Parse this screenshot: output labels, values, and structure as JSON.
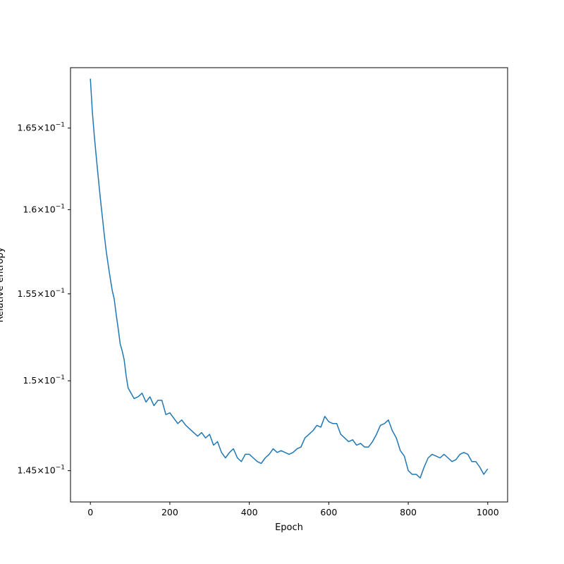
{
  "chart_data": {
    "type": "line",
    "title": "",
    "xlabel": "Epoch",
    "ylabel": "Relative entropy",
    "yscale": "log",
    "xlim": [
      -50,
      1050
    ],
    "ylim": [
      0.1433,
      0.1688
    ],
    "grid": false,
    "line_color": "#1f77b4",
    "x_ticks": [
      {
        "value": 0,
        "label": "0"
      },
      {
        "value": 200,
        "label": "200"
      },
      {
        "value": 400,
        "label": "400"
      },
      {
        "value": 600,
        "label": "600"
      },
      {
        "value": 800,
        "label": "800"
      },
      {
        "value": 1000,
        "label": "1000"
      }
    ],
    "y_ticks": [
      {
        "value": 0.145,
        "mantissa": "1.45",
        "base": "10",
        "exp": "−1"
      },
      {
        "value": 0.15,
        "mantissa": "1.5",
        "base": "10",
        "exp": "−1"
      },
      {
        "value": 0.155,
        "mantissa": "1.55",
        "base": "10",
        "exp": "−1"
      },
      {
        "value": 0.16,
        "mantissa": "1.6",
        "base": "10",
        "exp": "−1"
      },
      {
        "value": 0.165,
        "mantissa": "1.65",
        "base": "10",
        "exp": "−1"
      }
    ],
    "series": [
      {
        "x": [
          0,
          5,
          10,
          15,
          20,
          25,
          30,
          35,
          40,
          45,
          50,
          55,
          60,
          65,
          70,
          75,
          80,
          85,
          90,
          95,
          100,
          110,
          120,
          130,
          140,
          150,
          160,
          170,
          180,
          190,
          200,
          210,
          220,
          230,
          240,
          250,
          260,
          270,
          280,
          290,
          300,
          310,
          320,
          330,
          340,
          350,
          360,
          370,
          380,
          390,
          400,
          410,
          420,
          430,
          440,
          450,
          460,
          470,
          480,
          490,
          500,
          510,
          520,
          530,
          540,
          550,
          560,
          570,
          580,
          590,
          600,
          610,
          620,
          630,
          640,
          650,
          660,
          670,
          680,
          690,
          700,
          710,
          720,
          730,
          740,
          750,
          760,
          770,
          780,
          790,
          800,
          810,
          820,
          830,
          840,
          850,
          860,
          870,
          880,
          890,
          900,
          910,
          920,
          930,
          940,
          950,
          960,
          970,
          980,
          990,
          1000
        ],
        "y": [
          0.1681,
          0.166,
          0.1645,
          0.1632,
          0.1619,
          0.1607,
          0.1596,
          0.1585,
          0.1575,
          0.1567,
          0.1559,
          0.1552,
          0.1547,
          0.1538,
          0.153,
          0.1521,
          0.1517,
          0.1512,
          0.1503,
          0.1496,
          0.1494,
          0.149,
          0.1491,
          0.1493,
          0.1488,
          0.1491,
          0.1486,
          0.1489,
          0.1489,
          0.1481,
          0.1482,
          0.1479,
          0.1476,
          0.1478,
          0.1475,
          0.1473,
          0.1471,
          0.1469,
          0.1471,
          0.1468,
          0.147,
          0.1464,
          0.1466,
          0.146,
          0.1457,
          0.146,
          0.1462,
          0.1457,
          0.1455,
          0.1459,
          0.1459,
          0.1457,
          0.1455,
          0.1454,
          0.1457,
          0.1459,
          0.1462,
          0.146,
          0.1461,
          0.146,
          0.1459,
          0.146,
          0.1462,
          0.1463,
          0.1468,
          0.147,
          0.1472,
          0.1475,
          0.1474,
          0.148,
          0.1477,
          0.1476,
          0.1476,
          0.147,
          0.1468,
          0.1466,
          0.1467,
          0.1464,
          0.1465,
          0.1463,
          0.1463,
          0.1466,
          0.147,
          0.1475,
          0.1476,
          0.1478,
          0.1472,
          0.1468,
          0.1461,
          0.1458,
          0.145,
          0.1448,
          0.1448,
          0.1446,
          0.1452,
          0.1457,
          0.1459,
          0.1458,
          0.1457,
          0.1459,
          0.1457,
          0.1455,
          0.1456,
          0.1459,
          0.146,
          0.1459,
          0.1455,
          0.1455,
          0.1452,
          0.1448,
          0.1451
        ]
      }
    ]
  }
}
